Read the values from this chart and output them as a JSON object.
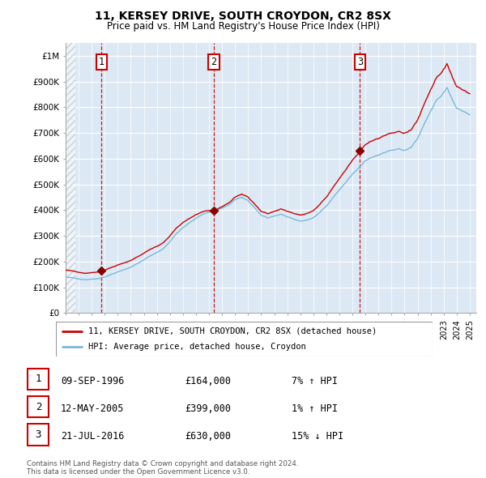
{
  "title": "11, KERSEY DRIVE, SOUTH CROYDON, CR2 8SX",
  "subtitle": "Price paid vs. HM Land Registry's House Price Index (HPI)",
  "ylim": [
    0,
    1050000
  ],
  "yticks": [
    0,
    100000,
    200000,
    300000,
    400000,
    500000,
    600000,
    700000,
    800000,
    900000,
    1000000
  ],
  "ytick_labels": [
    "£0",
    "£100K",
    "£200K",
    "£300K",
    "£400K",
    "£500K",
    "£600K",
    "£700K",
    "£800K",
    "£900K",
    "£1M"
  ],
  "sale_year_vals": [
    1996.75,
    2005.37,
    2016.58
  ],
  "sale_prices_vals": [
    164000,
    399000,
    630000
  ],
  "hpi_line_color": "#7ab8d9",
  "price_line_color": "#cc0000",
  "plot_bg_color": "#dce9f5",
  "grid_color": "#ffffff",
  "legend_entry1": "11, KERSEY DRIVE, SOUTH CROYDON, CR2 8SX (detached house)",
  "legend_entry2": "HPI: Average price, detached house, Croydon",
  "table_rows": [
    {
      "num": "1",
      "date": "09-SEP-1996",
      "price": "£164,000",
      "hpi": "7% ↑ HPI"
    },
    {
      "num": "2",
      "date": "12-MAY-2005",
      "price": "£399,000",
      "hpi": "1% ↑ HPI"
    },
    {
      "num": "3",
      "date": "21-JUL-2016",
      "price": "£630,000",
      "hpi": "15% ↓ HPI"
    }
  ],
  "footnote1": "Contains HM Land Registry data © Crown copyright and database right 2024.",
  "footnote2": "This data is licensed under the Open Government Licence v3.0."
}
